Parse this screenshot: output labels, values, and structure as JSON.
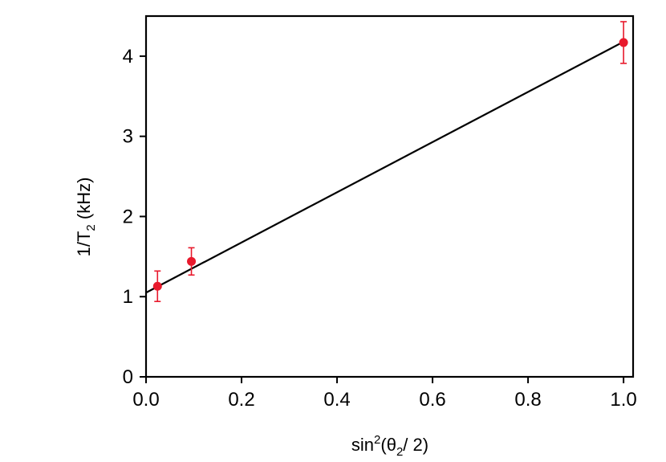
{
  "chart_data": {
    "type": "scatter",
    "xlabel": "sin²(θ₂/ 2)",
    "ylabel": "1/T₂ (kHz)",
    "xlim": [
      0.0,
      1.02
    ],
    "ylim": [
      0.0,
      4.5
    ],
    "x_ticks": [
      "0.0",
      "0.2",
      "0.4",
      "0.6",
      "0.8",
      "1.0"
    ],
    "y_ticks": [
      "0",
      "1",
      "2",
      "3",
      "4"
    ],
    "grid": false,
    "legend": "none",
    "series": [
      {
        "kind": "points-with-error",
        "color": "#e8192c",
        "x": [
          0.024,
          0.095,
          1.0
        ],
        "y": [
          1.13,
          1.44,
          4.17
        ],
        "yerr": [
          0.19,
          0.17,
          0.26
        ]
      },
      {
        "kind": "fit-line",
        "color": "#000000",
        "x": [
          0.0,
          1.0
        ],
        "y": [
          1.05,
          4.18
        ]
      }
    ]
  }
}
